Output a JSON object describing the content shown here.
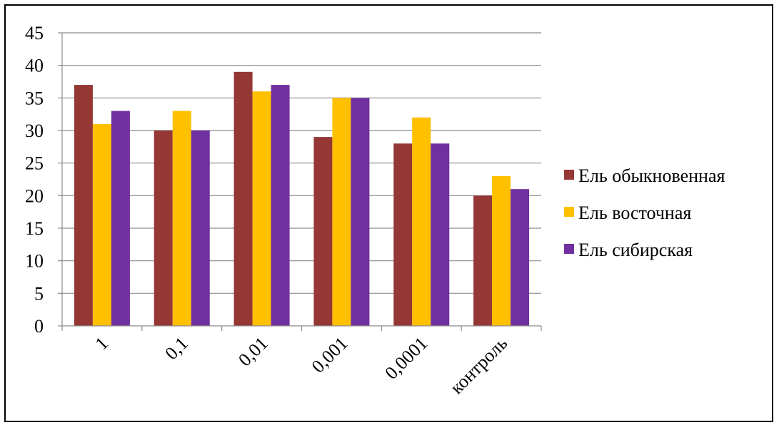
{
  "chart_data": {
    "type": "bar",
    "categories": [
      "1",
      "0,1",
      "0,01",
      "0,001",
      "0,0001",
      "контроль"
    ],
    "series": [
      {
        "name": "Ель обыкновенная",
        "color": "#953735",
        "values": [
          37,
          30,
          39,
          29,
          28,
          20
        ]
      },
      {
        "name": "Ель восточная",
        "color": "#FFC000",
        "values": [
          31,
          33,
          36,
          35,
          32,
          23
        ]
      },
      {
        "name": "Ель сибирская",
        "color": "#7030A0",
        "values": [
          33,
          30,
          37,
          35,
          28,
          21
        ]
      }
    ],
    "ylim": [
      0,
      45
    ],
    "yticks": [
      "0",
      "5",
      "10",
      "15",
      "20",
      "25",
      "30",
      "35",
      "40",
      "45"
    ],
    "grid": true,
    "legend_position": "right"
  }
}
